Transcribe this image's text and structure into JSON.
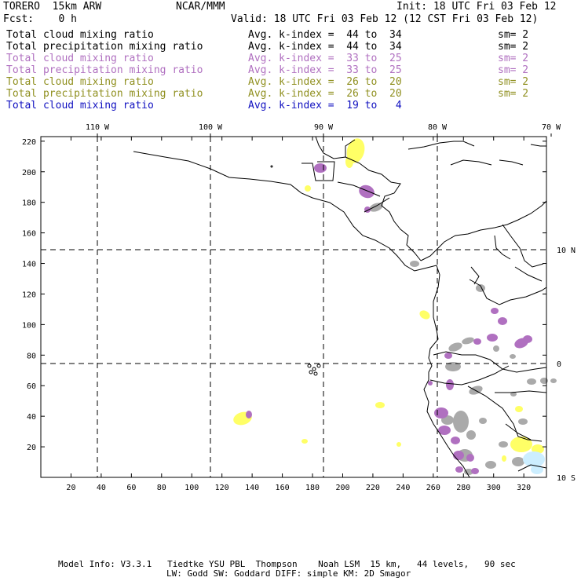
{
  "header": {
    "model": "TORERO  15km ARW",
    "org": "NCAR/MMM",
    "init": "Init: 18 UTC Fri 03 Feb 12",
    "fcst": "Fcst:    0 h",
    "valid": "Valid: 18 UTC Fri 03 Feb 12 (12 CST Fri 03 Feb 12)"
  },
  "legend": [
    {
      "field": "Total cloud mixing ratio",
      "stat": "Avg. k-index =  44 to  34",
      "sm": "sm= 2",
      "color": "#000000"
    },
    {
      "field": "Total precipitation mixing ratio",
      "stat": "Avg. k-index =  44 to  34",
      "sm": "sm= 2",
      "color": "#000000"
    },
    {
      "field": "Total cloud mixing ratio",
      "stat": "Avg. k-index =  33 to  25",
      "sm": "sm= 2",
      "color": "#b070c0"
    },
    {
      "field": "Total precipitation mixing ratio",
      "stat": "Avg. k-index =  33 to  25",
      "sm": "sm= 2",
      "color": "#b070c0"
    },
    {
      "field": "Total cloud mixing ratio",
      "stat": "Avg. k-index =  26 to  20",
      "sm": "sm= 2",
      "color": "#909020"
    },
    {
      "field": "Total precipitation mixing ratio",
      "stat": "Avg. k-index =  26 to  20",
      "sm": "sm= 2",
      "color": "#909020"
    },
    {
      "field": "Total cloud mixing ratio",
      "stat": "Avg. k-index =  19 to   4",
      "sm": "",
      "color": "#1010c0"
    }
  ],
  "map": {
    "lon_labels": [
      "110 W",
      "100 W",
      "90 W",
      "80 W",
      "70 W"
    ],
    "lat_labels": [
      "10 N",
      "0",
      "10 S"
    ],
    "x_ticks": [
      "20",
      "40",
      "60",
      "80",
      "100",
      "120",
      "140",
      "160",
      "180",
      "200",
      "220",
      "240",
      "260",
      "280",
      "300",
      "320"
    ],
    "y_ticks": [
      "20",
      "40",
      "60",
      "80",
      "100",
      "120",
      "140",
      "160",
      "180",
      "200",
      "220"
    ],
    "colors": {
      "gray": "#aaaaaa",
      "purple": "#b070c0",
      "yellow": "#ffff66",
      "lightblue": "#cceeff",
      "grid": "#000000"
    }
  },
  "footer": {
    "line1": "Model Info: V3.3.1   Tiedtke YSU PBL  Thompson    Noah LSM  15 km,   44 levels,   90 sec",
    "line2": "LW: Godd SW: Goddard DIFF: simple KM: 2D Smagor"
  }
}
